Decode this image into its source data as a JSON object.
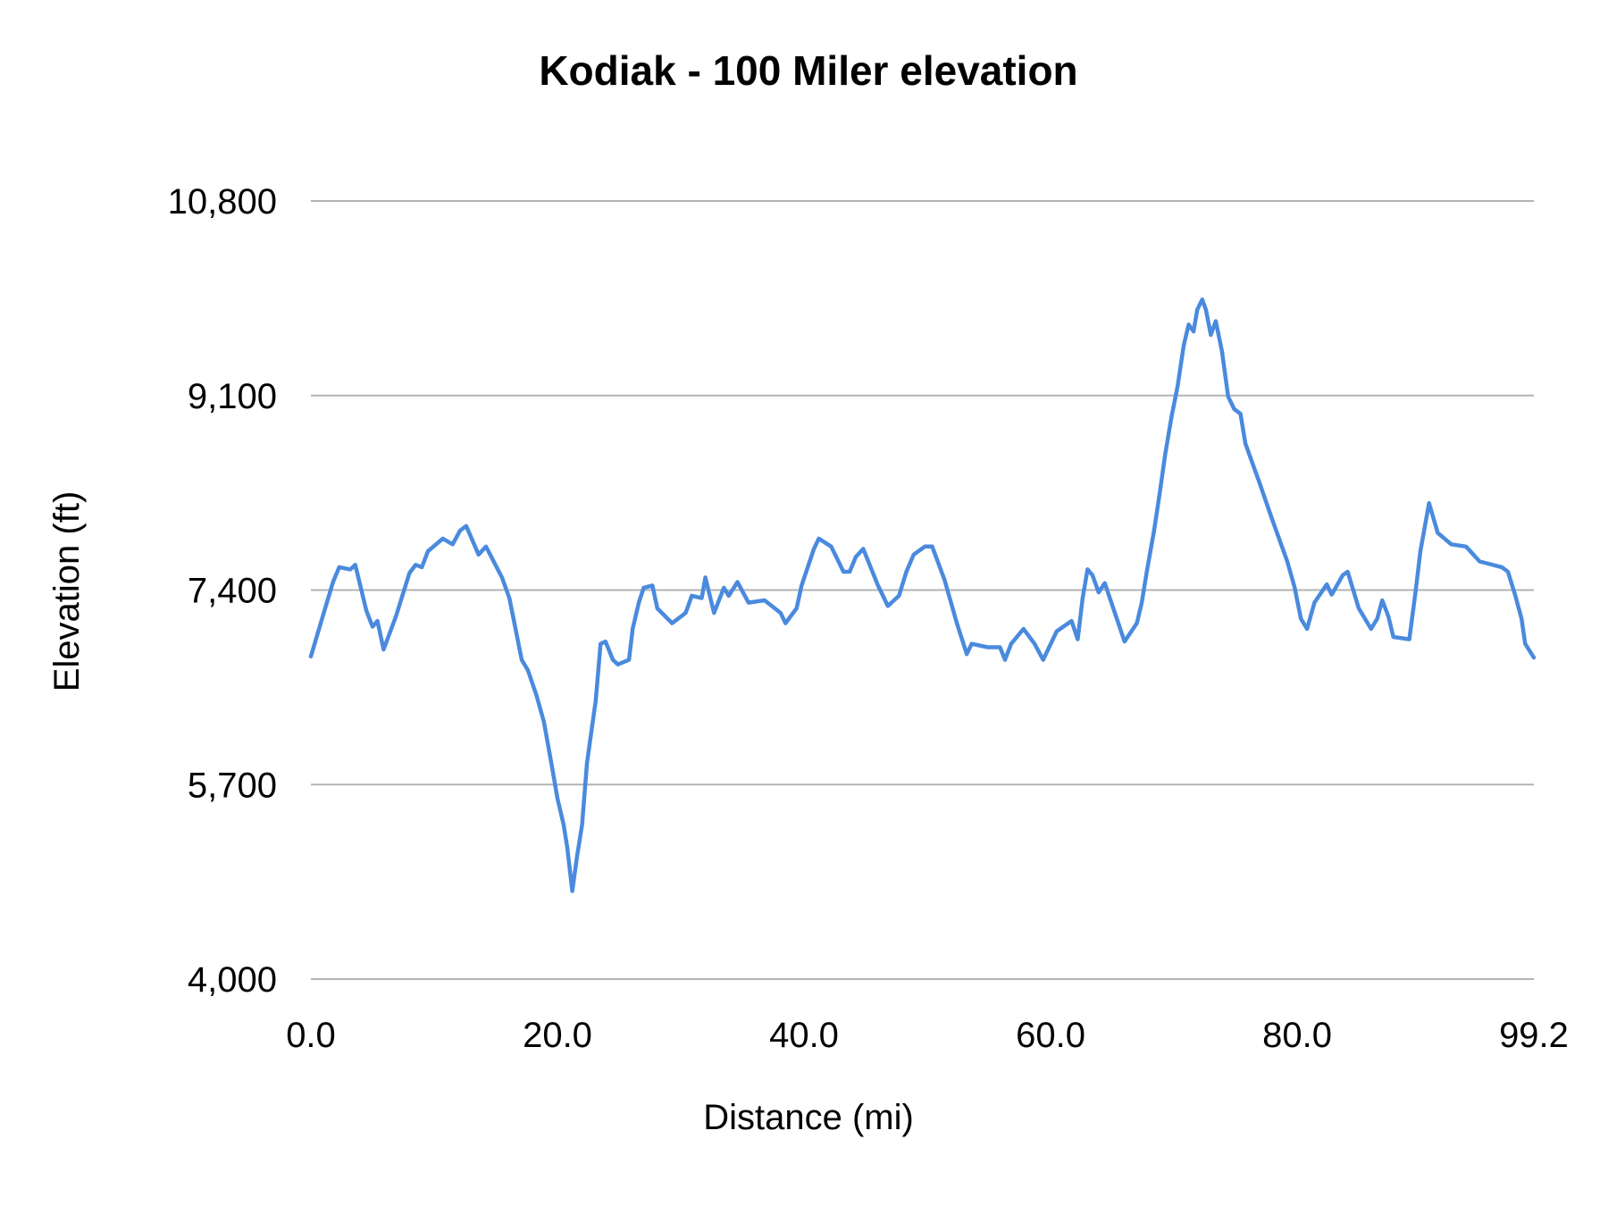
{
  "chart_data": {
    "type": "line",
    "title": "Kodiak - 100 Miler elevation",
    "xlabel": "Distance (mi)",
    "ylabel": "Elevation (ft)",
    "xlim": [
      0,
      99.2
    ],
    "ylim": [
      4000,
      10800
    ],
    "x_ticks": [
      "0.0",
      "20.0",
      "40.0",
      "60.0",
      "80.0",
      "99.2"
    ],
    "x_tick_values": [
      0,
      20,
      40,
      60,
      80,
      99.2
    ],
    "y_ticks": [
      "4,000",
      "5,700",
      "7,400",
      "9,100",
      "10,800"
    ],
    "y_tick_values": [
      4000,
      5700,
      7400,
      9100,
      10800
    ],
    "grid": "horizontal",
    "legend": "none",
    "line_color": "#4a8ade",
    "grid_color": "#b3b3b3",
    "series": [
      {
        "x": [
          0.0,
          0.8,
          1.8,
          2.3,
          3.2,
          3.6,
          4.5,
          5.0,
          5.4,
          5.9,
          6.9,
          8.0,
          8.5,
          9.0,
          9.5,
          10.7,
          11.5,
          12.1,
          12.6,
          13.6,
          14.2,
          15.5,
          16.1,
          16.6,
          17.1,
          17.6,
          18.3,
          18.9,
          19.5,
          20.0,
          20.5,
          20.8,
          21.2,
          21.6,
          22.0,
          22.4,
          23.1,
          23.5,
          23.9,
          24.5,
          24.9,
          25.8,
          26.1,
          26.6,
          27.0,
          27.7,
          28.1,
          29.3,
          30.4,
          30.9,
          31.7,
          32.0,
          32.7,
          33.5,
          33.9,
          34.6,
          35.5,
          36.8,
          38.1,
          38.5,
          39.4,
          39.8,
          40.8,
          41.2,
          42.2,
          43.2,
          43.7,
          44.2,
          44.8,
          46.0,
          46.8,
          47.7,
          48.3,
          48.9,
          49.8,
          50.4,
          51.4,
          52.4,
          53.2,
          53.6,
          54.9,
          55.9,
          56.3,
          56.8,
          57.8,
          58.7,
          59.4,
          60.5,
          61.7,
          62.2,
          62.6,
          63.0,
          63.4,
          63.9,
          64.4,
          65.5,
          66.0,
          67.0,
          67.4,
          67.8,
          68.4,
          68.9,
          69.3,
          69.8,
          70.3,
          70.8,
          71.2,
          71.6,
          71.9,
          72.3,
          72.6,
          73.0,
          73.4,
          73.9,
          74.4,
          74.9,
          75.4,
          75.8,
          76.9,
          78.0,
          79.2,
          79.8,
          80.3,
          80.8,
          81.4,
          82.4,
          82.8,
          83.7,
          84.1,
          85.0,
          86.0,
          86.5,
          86.9,
          87.4,
          87.8,
          89.1,
          89.6,
          90.0,
          90.7,
          91.4,
          92.5,
          93.7,
          94.8,
          96.6,
          97.1,
          97.7,
          98.2,
          98.5,
          99.2
        ],
        "y": [
          6820,
          7110,
          7470,
          7600,
          7580,
          7620,
          7220,
          7080,
          7130,
          6880,
          7170,
          7550,
          7620,
          7600,
          7740,
          7850,
          7800,
          7920,
          7960,
          7710,
          7780,
          7510,
          7330,
          7060,
          6790,
          6700,
          6480,
          6250,
          5890,
          5580,
          5350,
          5150,
          4770,
          5080,
          5350,
          5890,
          6430,
          6930,
          6950,
          6790,
          6750,
          6790,
          7060,
          7290,
          7420,
          7440,
          7240,
          7110,
          7200,
          7350,
          7330,
          7510,
          7200,
          7420,
          7350,
          7470,
          7290,
          7310,
          7200,
          7110,
          7240,
          7440,
          7760,
          7850,
          7780,
          7560,
          7560,
          7690,
          7760,
          7440,
          7260,
          7350,
          7560,
          7710,
          7780,
          7780,
          7490,
          7110,
          6840,
          6930,
          6900,
          6900,
          6790,
          6930,
          7060,
          6930,
          6790,
          7040,
          7130,
          6970,
          7330,
          7580,
          7530,
          7380,
          7460,
          7110,
          6950,
          7110,
          7290,
          7560,
          7920,
          8280,
          8590,
          8910,
          9180,
          9540,
          9720,
          9660,
          9850,
          9940,
          9850,
          9630,
          9750,
          9490,
          9090,
          8980,
          8940,
          8680,
          8350,
          8010,
          7650,
          7420,
          7150,
          7060,
          7290,
          7450,
          7360,
          7530,
          7560,
          7240,
          7060,
          7150,
          7310,
          7170,
          6990,
          6970,
          7380,
          7740,
          8160,
          7900,
          7800,
          7780,
          7650,
          7600,
          7560,
          7350,
          7150,
          6930,
          6810
        ]
      }
    ]
  }
}
